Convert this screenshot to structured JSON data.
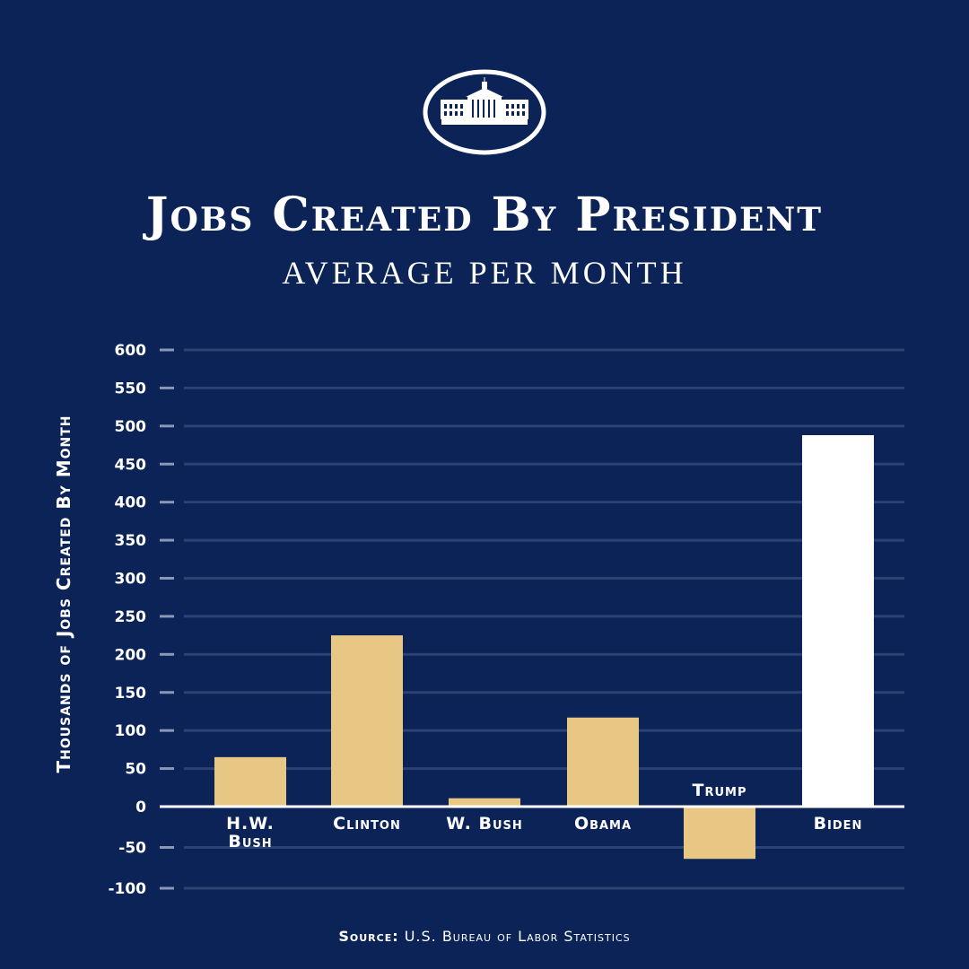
{
  "header": {
    "logo_icon": "white-house-icon",
    "title": "Jobs Created By President",
    "subtitle": "AVERAGE PER MONTH"
  },
  "footer": {
    "source_label": "Source:",
    "source_text": "U.S. Bureau of Labor Statistics"
  },
  "colors": {
    "background": "#0b2357",
    "bar": "#e8c683",
    "highlight": "#ffffff",
    "grid": "#2b4272"
  },
  "chart_data": {
    "type": "bar",
    "title": "Jobs Created By President",
    "subtitle": "AVERAGE PER MONTH",
    "ylabel": "Thousands of Jobs Created By Month",
    "xlabel": "",
    "ylim": [
      -100,
      600
    ],
    "yticks": [
      600,
      550,
      500,
      450,
      400,
      350,
      300,
      250,
      200,
      150,
      100,
      50,
      0,
      -50,
      -100
    ],
    "grid": true,
    "categories": [
      "H.W. Bush",
      "Clinton",
      "W. Bush",
      "Obama",
      "Trump",
      "Biden"
    ],
    "values": [
      65,
      225,
      11,
      117,
      -64,
      488
    ],
    "highlight": "Biden"
  }
}
